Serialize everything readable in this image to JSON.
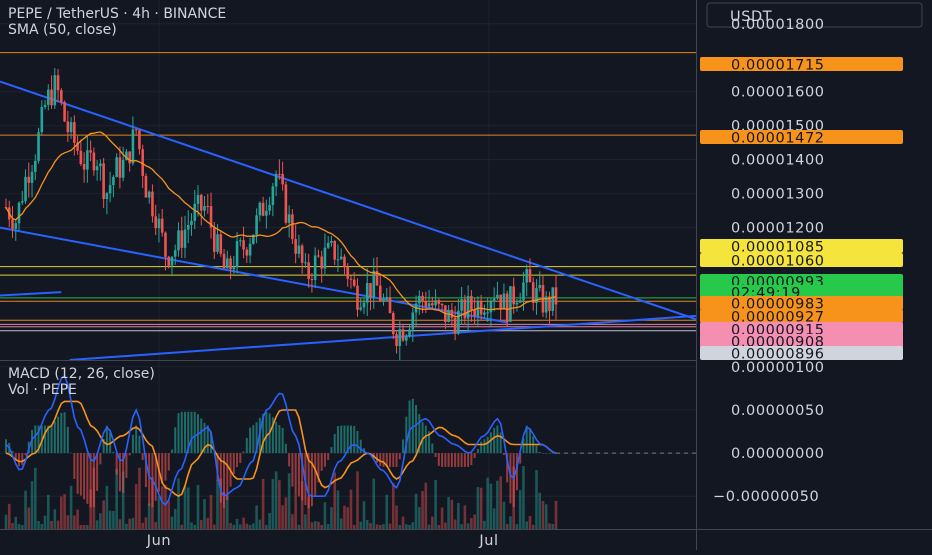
{
  "header": {
    "symbol_line": "PEPE / TetherUS · 4h · BINANCE",
    "sma_line": "SMA (50, close)",
    "macd_line": "MACD (12, 26, close)",
    "vol_line": "Vol · PEPE"
  },
  "currency_button": {
    "label": "USDT"
  },
  "time_axis": {
    "labels": [
      "Jun",
      "Jul"
    ]
  },
  "price_axis": {
    "ticks": [
      {
        "value": 1.8e-05,
        "label": "0.00001800"
      },
      {
        "value": 1.6e-05,
        "label": "0.00001600"
      },
      {
        "value": 1.5e-05,
        "label": "0.00001500"
      },
      {
        "value": 1.4e-05,
        "label": "0.00001400"
      },
      {
        "value": 1.3e-05,
        "label": "0.00001300"
      },
      {
        "value": 1.2e-05,
        "label": "0.00001200"
      }
    ]
  },
  "price_tags": [
    {
      "label": "0.00001715",
      "value": 1.715e-05,
      "bg": "#f7931a",
      "fg": "#131722",
      "line": "#f7931a"
    },
    {
      "label": "0.00001472",
      "value": 1.472e-05,
      "bg": "#f7931a",
      "fg": "#131722",
      "line": "#f7931a"
    },
    {
      "label": "0.00001085",
      "value": 1.085e-05,
      "bg": "#f5e43c",
      "fg": "#131722",
      "line": "#f5e43c"
    },
    {
      "label": "0.00001060",
      "value": 1.06e-05,
      "bg": "#f5e43c",
      "fg": "#131722",
      "line": "#f5e43c"
    },
    {
      "label": "0.00000993",
      "value": 9.93e-06,
      "bg": "#26c94a",
      "fg": "#131722",
      "line": "#26c94a"
    },
    {
      "label": "02:49:19",
      "value": 9.93e-06,
      "bg": "#26c94a",
      "fg": "#131722",
      "line": "",
      "countdown": true
    },
    {
      "label": "0.00000983",
      "value": 9.83e-06,
      "bg": "#f7931a",
      "fg": "#131722",
      "line": "#f7931a"
    },
    {
      "label": "0.00000927",
      "value": 9.27e-06,
      "bg": "#f7931a",
      "fg": "#131722",
      "line": "#f7931a"
    },
    {
      "label": "0.00000915",
      "value": 9.15e-06,
      "bg": "#f48fb1",
      "fg": "#131722",
      "line": "#f48fb1"
    },
    {
      "label": "0.00000908",
      "value": 9.08e-06,
      "bg": "#f48fb1",
      "fg": "#131722",
      "line": "#f48fb1"
    },
    {
      "label": "0.00000896",
      "value": 8.96e-06,
      "bg": "#d1d4dc",
      "fg": "#131722",
      "line": "#d1d4dc"
    }
  ],
  "macd_axis": {
    "ticks": [
      {
        "value": 1e-06,
        "label": "0.00000100"
      },
      {
        "value": 5e-07,
        "label": "0.00000050"
      },
      {
        "value": 0.0,
        "label": "0.00000000"
      },
      {
        "value": -5e-07,
        "label": "−0.00000050"
      }
    ]
  },
  "chart_data": {
    "type": "candlestick",
    "symbol": "PEPE / TetherUS",
    "interval": "4h",
    "exchange": "BINANCE",
    "currency": "USDT",
    "x_time_labels": [
      "Jun",
      "Jul"
    ],
    "price_ylim": [
      8.1e-06,
      1.87e-05
    ],
    "price_path": [
      1.26e-05,
      1.22e-05,
      1.35e-05,
      1.43e-05,
      1.57e-05,
      1.62e-05,
      1.5e-05,
      1.44e-05,
      1.38e-05,
      1.42e-05,
      1.3e-05,
      1.37e-05,
      1.39e-05,
      1.49e-05,
      1.32e-05,
      1.24e-05,
      1.12e-05,
      1.14e-05,
      1.2e-05,
      1.25e-05,
      1.26e-05,
      1.15e-05,
      1.06e-05,
      1.12e-05,
      1.15e-05,
      1.21e-05,
      1.28e-05,
      1.36e-05,
      1.25e-05,
      1.15e-05,
      1.05e-05,
      1.1e-05,
      1.12e-05,
      1.13e-05,
      1.08e-05,
      1e-05,
      1.02e-05,
      1.03e-05,
      9.6e-06,
      8.9e-06,
      9.1e-06,
      9.8e-06,
      9.9e-06,
      9.6e-06,
      9.4e-06,
      9.3e-06,
      9.6e-06,
      9.7e-06,
      9.9e-06,
      1.02e-05,
      9.6e-06,
      1.01e-05,
      1.04e-05,
      1e-05,
      9.7e-06,
      9.9e-06
    ],
    "current_price": 9.93e-06,
    "countdown": "02:49:19",
    "horizontal_levels": [
      1.715e-05,
      1.472e-05,
      1.085e-05,
      1.06e-05,
      9.83e-06,
      9.27e-06,
      9.15e-06,
      9.08e-06,
      8.96e-06
    ],
    "trendlines": [
      {
        "p1": [
          0.0,
          1.63e-05
        ],
        "p2": [
          1.0,
          9.3e-06
        ]
      },
      {
        "p1": [
          0.0,
          1.2e-05
        ],
        "p2": [
          0.73,
          9.2e-06
        ]
      },
      {
        "p1": [
          0.1,
          8.1e-06
        ],
        "p2": [
          1.0,
          9.4e-06
        ]
      },
      {
        "p1": [
          0.0,
          1e-05
        ],
        "p2": [
          0.088,
          1.01e-05
        ]
      }
    ],
    "sma": {
      "name": "SMA (50, close)",
      "length": 50,
      "color": "#f7931a"
    },
    "macd": {
      "name": "MACD (12, 26, close)",
      "ylim": [
        -8.8e-07,
        1.08e-06
      ],
      "macd_line": [
        1e-07,
        -2e-07,
        2e-07,
        5e-07,
        9e-07,
        3e-07,
        -1e-07,
        3e-07,
        -1e-07,
        5e-07,
        -3e-07,
        -6e-07,
        -2e-07,
        2e-07,
        3e-07,
        -5e-07,
        -4e-07,
        -1e-07,
        5e-07,
        7e-07,
        2e-07,
        -5e-07,
        -5e-07,
        -1e-07,
        1e-07,
        0.0,
        -2e-07,
        -4e-07,
        3e-07,
        4e-07,
        2e-07,
        1e-07,
        0.0,
        2e-07,
        4e-07,
        -3e-07,
        3e-07,
        1e-07,
        0.0
      ],
      "signal_line": [
        0.0,
        -1e-07,
        0.0,
        3e-07,
        6e-07,
        6e-07,
        3e-07,
        1e-07,
        2e-07,
        3e-07,
        1e-07,
        -4e-07,
        -5e-07,
        -1e-07,
        1e-07,
        -1e-07,
        -3e-07,
        -3e-07,
        2e-07,
        5e-07,
        5e-07,
        -1e-07,
        -4e-07,
        -3e-07,
        -1e-07,
        0.0,
        -1e-07,
        -3e-07,
        -1e-07,
        2e-07,
        3e-07,
        2e-07,
        1e-07,
        1e-07,
        2e-07,
        1e-07,
        1e-07,
        1e-07,
        0.0
      ],
      "macd_color": "#2962ff",
      "signal_color": "#f7931a"
    },
    "volume": {
      "name": "Vol · PEPE"
    }
  },
  "colors": {
    "background": "#131722",
    "grid": "#1e222d",
    "up_candle": "#26a69a",
    "down_candle": "#ef5350",
    "trendline": "#2962ff",
    "sma": "#f7931a",
    "text": "#d1d4dc",
    "separator": "#434651"
  }
}
